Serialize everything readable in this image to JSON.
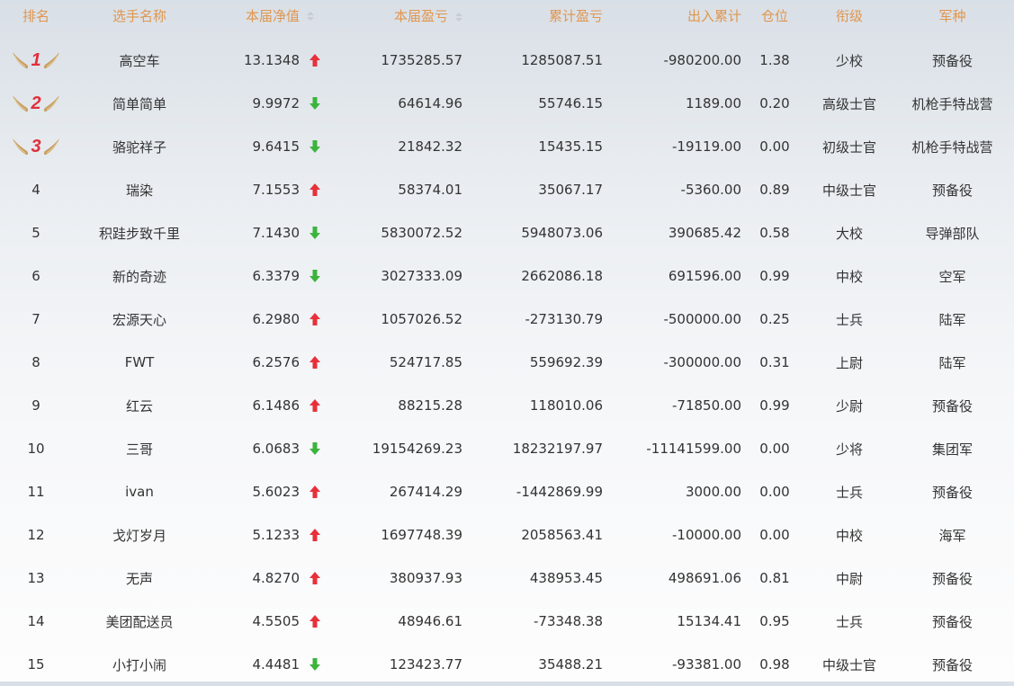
{
  "headers": {
    "rank": "排名",
    "name": "选手名称",
    "nav": "本届净值",
    "pnl": "本届盈亏",
    "cum_pnl": "累计盈亏",
    "flow": "出入累计",
    "position": "仓位",
    "title": "衔级",
    "branch": "军种"
  },
  "colors": {
    "header": "#e0964e",
    "up": "#e8303a",
    "down": "#3cb43c",
    "medal_number": "#e0303c",
    "medal_wing": "#c9a064"
  },
  "rows": [
    {
      "rank": "1",
      "medal": true,
      "name": "高空车",
      "nav": "13.1348",
      "trend": "up",
      "pnl": "1735285.57",
      "cum_pnl": "1285087.51",
      "flow": "-980200.00",
      "position": "1.38",
      "title": "少校",
      "branch": "预备役"
    },
    {
      "rank": "2",
      "medal": true,
      "name": "简单简单",
      "nav": "9.9972",
      "trend": "down",
      "pnl": "64614.96",
      "cum_pnl": "55746.15",
      "flow": "1189.00",
      "position": "0.20",
      "title": "高级士官",
      "branch": "机枪手特战营"
    },
    {
      "rank": "3",
      "medal": true,
      "name": "骆驼祥子",
      "nav": "9.6415",
      "trend": "down",
      "pnl": "21842.32",
      "cum_pnl": "15435.15",
      "flow": "-19119.00",
      "position": "0.00",
      "title": "初级士官",
      "branch": "机枪手特战营"
    },
    {
      "rank": "4",
      "name": "瑞染",
      "nav": "7.1553",
      "trend": "up",
      "pnl": "58374.01",
      "cum_pnl": "35067.17",
      "flow": "-5360.00",
      "position": "0.89",
      "title": "中级士官",
      "branch": "预备役"
    },
    {
      "rank": "5",
      "name": "积跬步致千里",
      "nav": "7.1430",
      "trend": "down",
      "pnl": "5830072.52",
      "cum_pnl": "5948073.06",
      "flow": "390685.42",
      "position": "0.58",
      "title": "大校",
      "branch": "导弹部队"
    },
    {
      "rank": "6",
      "name": "新的奇迹",
      "nav": "6.3379",
      "trend": "down",
      "pnl": "3027333.09",
      "cum_pnl": "2662086.18",
      "flow": "691596.00",
      "position": "0.99",
      "title": "中校",
      "branch": "空军"
    },
    {
      "rank": "7",
      "name": "宏源天心",
      "nav": "6.2980",
      "trend": "up",
      "pnl": "1057026.52",
      "cum_pnl": "-273130.79",
      "flow": "-500000.00",
      "position": "0.25",
      "title": "士兵",
      "branch": "陆军"
    },
    {
      "rank": "8",
      "name": "FWT",
      "nav": "6.2576",
      "trend": "up",
      "pnl": "524717.85",
      "cum_pnl": "559692.39",
      "flow": "-300000.00",
      "position": "0.31",
      "title": "上尉",
      "branch": "陆军"
    },
    {
      "rank": "9",
      "name": "红云",
      "nav": "6.1486",
      "trend": "up",
      "pnl": "88215.28",
      "cum_pnl": "118010.06",
      "flow": "-71850.00",
      "position": "0.99",
      "title": "少尉",
      "branch": "预备役"
    },
    {
      "rank": "10",
      "name": "三哥",
      "nav": "6.0683",
      "trend": "down",
      "pnl": "19154269.23",
      "cum_pnl": "18232197.97",
      "flow": "-11141599.00",
      "position": "0.00",
      "title": "少将",
      "branch": "集团军"
    },
    {
      "rank": "11",
      "name": "ivan",
      "nav": "5.6023",
      "trend": "up",
      "pnl": "267414.29",
      "cum_pnl": "-1442869.99",
      "flow": "3000.00",
      "position": "0.00",
      "title": "士兵",
      "branch": "预备役"
    },
    {
      "rank": "12",
      "name": "戈灯岁月",
      "nav": "5.1233",
      "trend": "up",
      "pnl": "1697748.39",
      "cum_pnl": "2058563.41",
      "flow": "-10000.00",
      "position": "0.00",
      "title": "中校",
      "branch": "海军"
    },
    {
      "rank": "13",
      "name": "无声",
      "nav": "4.8270",
      "trend": "up",
      "pnl": "380937.93",
      "cum_pnl": "438953.45",
      "flow": "498691.06",
      "position": "0.81",
      "title": "中尉",
      "branch": "预备役"
    },
    {
      "rank": "14",
      "name": "美团配送员",
      "nav": "4.5505",
      "trend": "up",
      "pnl": "48946.61",
      "cum_pnl": "-73348.38",
      "flow": "15134.41",
      "position": "0.95",
      "title": "士兵",
      "branch": "预备役"
    },
    {
      "rank": "15",
      "name": "小打小闹",
      "nav": "4.4481",
      "trend": "down",
      "pnl": "123423.77",
      "cum_pnl": "35488.21",
      "flow": "-93381.00",
      "position": "0.98",
      "title": "中级士官",
      "branch": "预备役"
    }
  ]
}
